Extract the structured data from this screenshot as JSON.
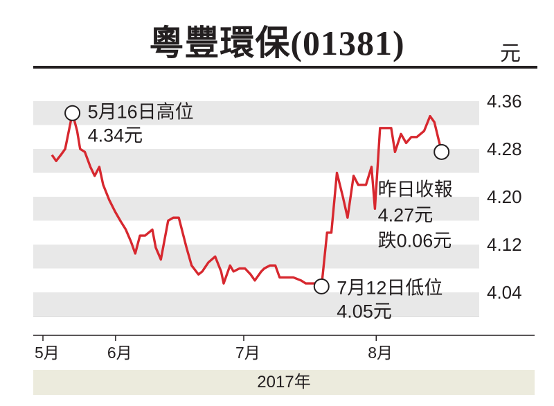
{
  "header": {
    "title": "粵豐環保(01381)",
    "unit": "元"
  },
  "chart_data": {
    "type": "line",
    "title": "粵豐環保(01381)",
    "ylabel": "元",
    "ylim": [
      4.0,
      4.38
    ],
    "yticks": [
      4.04,
      4.12,
      4.2,
      4.28,
      4.36
    ],
    "ytick_labels": [
      "4.04",
      "4.12",
      "4.20",
      "4.28",
      "4.36"
    ],
    "x_months": [
      {
        "label": "5月",
        "day": 0
      },
      {
        "label": "6月",
        "day": 17
      },
      {
        "label": "7月",
        "day": 47
      },
      {
        "label": "8月",
        "day": 78
      }
    ],
    "year_label": "2017年",
    "x_range": [
      0,
      109
    ],
    "grid": "alternating horizontal bands",
    "line_color": "#d7282f",
    "series": [
      {
        "points": [
          [
            2.1,
            4.27
          ],
          [
            3.1,
            4.26
          ],
          [
            4.2,
            4.27
          ],
          [
            5.2,
            4.28
          ],
          [
            6.9,
            4.34
          ],
          [
            8.0,
            4.31
          ],
          [
            8.7,
            4.28
          ],
          [
            9.8,
            4.275
          ],
          [
            11.1,
            4.25
          ],
          [
            12.1,
            4.235
          ],
          [
            13.2,
            4.25
          ],
          [
            14.1,
            4.22
          ],
          [
            15.5,
            4.195
          ],
          [
            16.9,
            4.175
          ],
          [
            18.1,
            4.16
          ],
          [
            19.4,
            4.145
          ],
          [
            20.6,
            4.125
          ],
          [
            21.6,
            4.105
          ],
          [
            22.7,
            4.135
          ],
          [
            23.9,
            4.135
          ],
          [
            25.6,
            4.145
          ],
          [
            26.4,
            4.115
          ],
          [
            27.6,
            4.095
          ],
          [
            29.3,
            4.16
          ],
          [
            30.5,
            4.165
          ],
          [
            31.8,
            4.165
          ],
          [
            33.6,
            4.115
          ],
          [
            34.8,
            4.085
          ],
          [
            36.4,
            4.07
          ],
          [
            37.3,
            4.075
          ],
          [
            38.7,
            4.09
          ],
          [
            40.3,
            4.1
          ],
          [
            41.7,
            4.075
          ],
          [
            42.3,
            4.055
          ],
          [
            43.8,
            4.085
          ],
          [
            44.6,
            4.075
          ],
          [
            46.0,
            4.08
          ],
          [
            47.3,
            4.08
          ],
          [
            48.6,
            4.07
          ],
          [
            49.6,
            4.06
          ],
          [
            51.1,
            4.075
          ],
          [
            51.8,
            4.08
          ],
          [
            53.1,
            4.085
          ],
          [
            54.4,
            4.085
          ],
          [
            55.4,
            4.065
          ],
          [
            57.3,
            4.065
          ],
          [
            58.6,
            4.065
          ],
          [
            60.4,
            4.06
          ],
          [
            61.5,
            4.055
          ],
          [
            64.3,
            4.055
          ],
          [
            65.2,
            4.05
          ],
          [
            66.5,
            4.14
          ],
          [
            67.5,
            4.14
          ],
          [
            68.8,
            4.24
          ],
          [
            70.2,
            4.2
          ],
          [
            71.3,
            4.165
          ],
          [
            72.7,
            4.235
          ],
          [
            73.8,
            4.22
          ],
          [
            75.6,
            4.22
          ],
          [
            76.9,
            4.25
          ],
          [
            77.7,
            4.18
          ],
          [
            78.9,
            4.315
          ],
          [
            81.5,
            4.315
          ],
          [
            82.4,
            4.275
          ],
          [
            83.8,
            4.305
          ],
          [
            85.0,
            4.29
          ],
          [
            86.2,
            4.3
          ],
          [
            87.5,
            4.3
          ],
          [
            89.2,
            4.31
          ],
          [
            90.6,
            4.335
          ],
          [
            91.6,
            4.325
          ],
          [
            93.3,
            4.275
          ]
        ]
      }
    ],
    "annotations": {
      "high": {
        "x": 6.9,
        "y": 4.34,
        "lines": [
          "5月16日高位",
          "4.34元"
        ]
      },
      "low": {
        "x": 65.2,
        "y": 4.05,
        "lines": [
          "7月12日低位",
          "4.05元"
        ]
      },
      "latest": {
        "x": 93.3,
        "y": 4.275,
        "lines": [
          "昨日收報",
          "4.27元",
          "跌0.06元"
        ]
      }
    }
  }
}
